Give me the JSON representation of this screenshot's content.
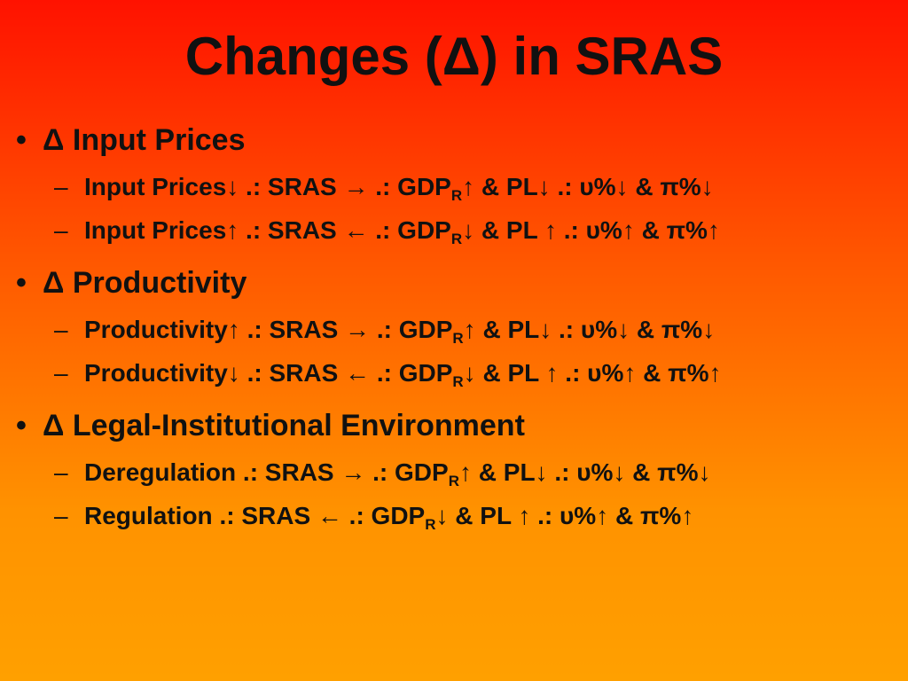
{
  "title": "Changes (Δ) in SRAS",
  "sections": [
    {
      "heading": "Δ Input Prices",
      "items": [
        {
          "before": "Input Prices↓ .: SRAS → .: GDP",
          "sub": "R",
          "after": "↑ & PL↓ .: υ%↓ & π%↓"
        },
        {
          "before": "Input Prices↑ .: SRAS ← .: GDP",
          "sub": "R",
          "after": "↓ & PL ↑ .: υ%↑ & π%↑"
        }
      ]
    },
    {
      "heading": "Δ Productivity",
      "items": [
        {
          "before": "Productivity↑ .: SRAS → .: GDP",
          "sub": "R",
          "after": "↑ & PL↓ .: υ%↓ & π%↓"
        },
        {
          "before": "Productivity↓ .: SRAS ← .: GDP",
          "sub": "R",
          "after": "↓ & PL ↑ .: υ%↑ & π%↑"
        }
      ]
    },
    {
      "heading": "Δ Legal-Institutional Environment",
      "items": [
        {
          "before": "Deregulation .: SRAS → .: GDP",
          "sub": "R",
          "after": "↑ & PL↓ .: υ%↓ & π%↓"
        },
        {
          "before": "Regulation .: SRAS ← .: GDP",
          "sub": "R",
          "after": "↓ & PL ↑ .: υ%↑ & π%↑"
        }
      ]
    }
  ]
}
